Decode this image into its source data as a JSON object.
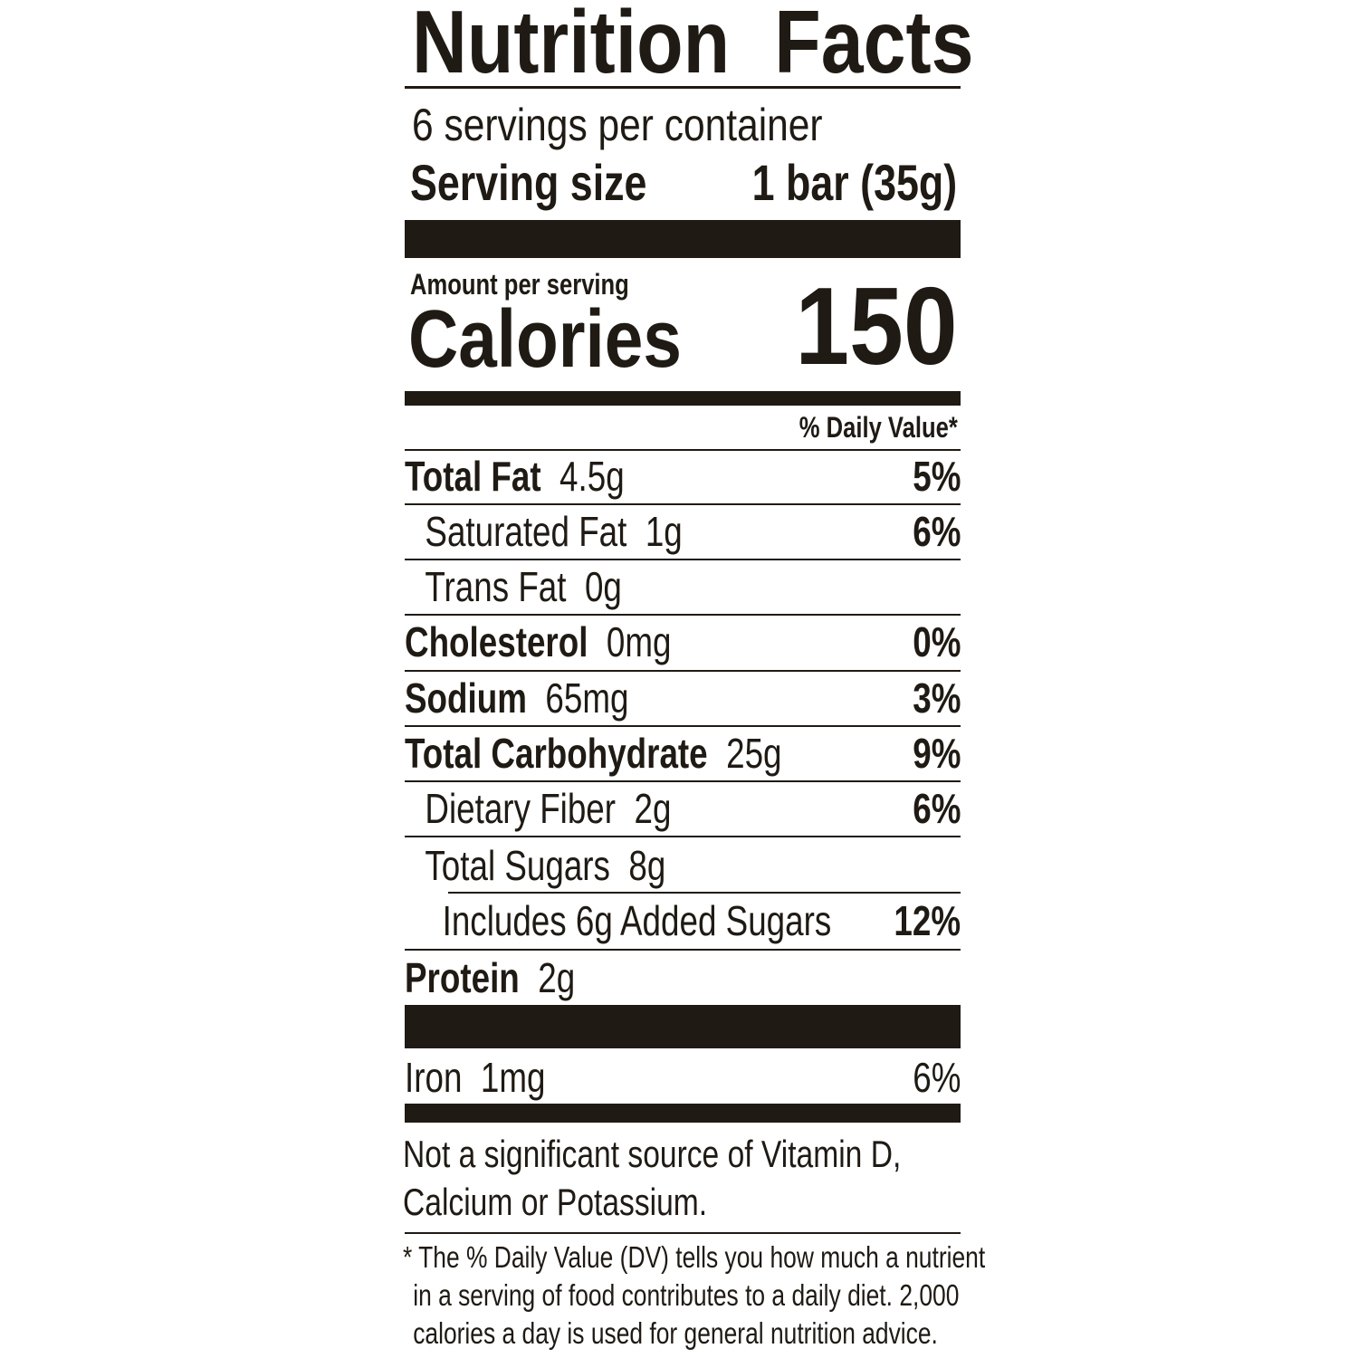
{
  "title": "Nutrition Facts",
  "servings_per_container": "6 servings per container",
  "serving_size": {
    "label": "Serving size",
    "value": "1 bar (35g)"
  },
  "amount_per_serving": "Amount per serving",
  "calories": {
    "label": "Calories",
    "value": "150"
  },
  "daily_value_header": "% Daily Value*",
  "nutrients": [
    {
      "name": "Total Fat",
      "amount": "4.5g",
      "dv": "5%"
    },
    {
      "name": "Saturated Fat",
      "amount": "1g",
      "dv": "6%"
    },
    {
      "name": "Trans Fat",
      "amount": "0g",
      "dv": ""
    },
    {
      "name": "Cholesterol",
      "amount": "0mg",
      "dv": "0%"
    },
    {
      "name": "Sodium",
      "amount": "65mg",
      "dv": "3%"
    },
    {
      "name": "Total Carbohydrate",
      "amount": "25g",
      "dv": "9%"
    },
    {
      "name": "Dietary Fiber",
      "amount": "2g",
      "dv": "6%"
    },
    {
      "name": "Total Sugars",
      "amount": "8g",
      "dv": ""
    },
    {
      "name": "Includes 6g Added Sugars",
      "amount": "",
      "dv": "12%"
    },
    {
      "name": "Protein",
      "amount": "2g",
      "dv": ""
    }
  ],
  "vitamins": [
    {
      "name": "Iron",
      "amount": "1mg",
      "dv": "6%"
    }
  ],
  "not_significant": [
    "Not a significant source of Vitamin D,",
    "Calcium or Potassium."
  ],
  "footnote": [
    "* The % Daily Value (DV) tells you how much a nutrient",
    "in a serving of food contributes to a daily diet. 2,000",
    "calories a day is used for general nutrition advice."
  ]
}
